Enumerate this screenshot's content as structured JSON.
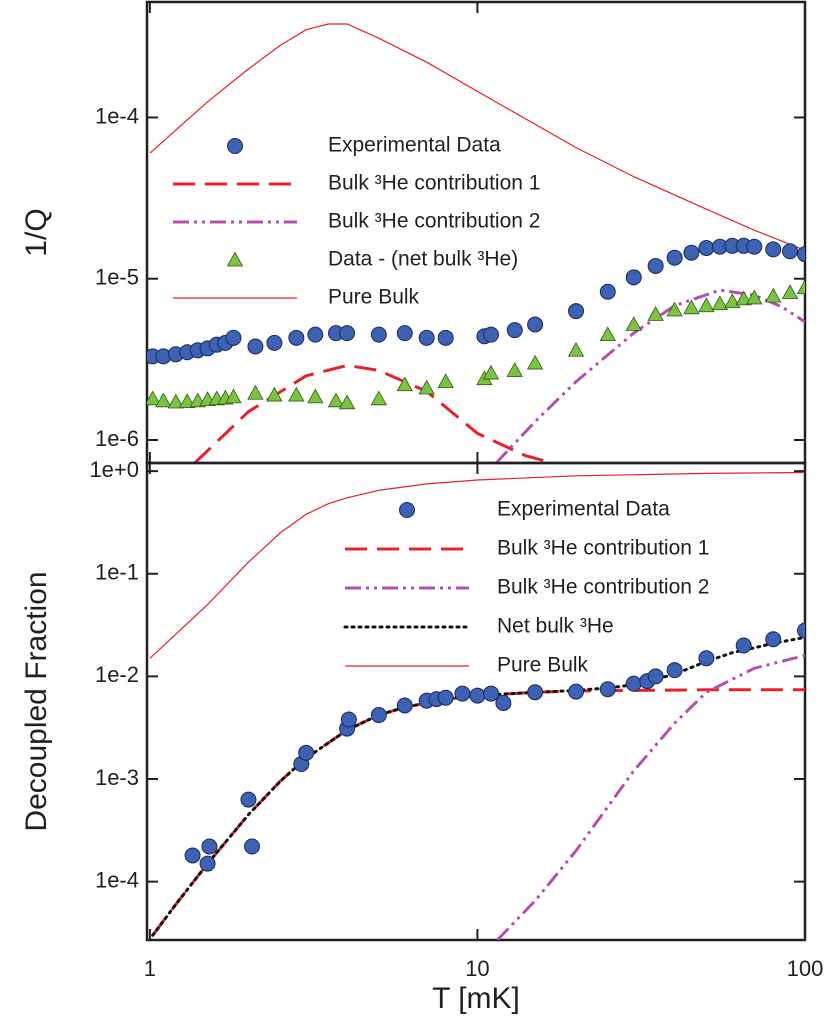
{
  "chart_data": [
    {
      "type": "line",
      "ylabel": "1/Q",
      "log_x": true,
      "log_y": true,
      "legend": true,
      "show_xtick_labels": false,
      "xlim": [
        0.98,
        100
      ],
      "xticks": [
        1,
        10,
        100
      ],
      "ylim": [
        7.2e-07,
        0.00052
      ],
      "yticks": [
        {
          "value": 1e-06,
          "label": "1e-6"
        },
        {
          "value": 1e-05,
          "label": "1e-5"
        },
        {
          "value": 0.0001,
          "label": "1e-4"
        }
      ],
      "series": [
        {
          "name": "Experimental Data",
          "style": "markers",
          "marker": "circle",
          "color": "#3d62b3",
          "x": [
            1.02,
            1.1,
            1.2,
            1.3,
            1.4,
            1.5,
            1.6,
            1.7,
            1.8,
            2.1,
            2.4,
            2.8,
            3.2,
            3.7,
            4.0,
            5,
            6,
            7,
            8,
            10.5,
            11,
            13,
            15,
            20,
            25,
            30,
            35,
            40,
            45,
            50,
            55,
            60,
            65,
            70,
            80,
            90,
            100
          ],
          "values": [
            3.3e-06,
            3.3e-06,
            3.4e-06,
            3.5e-06,
            3.6e-06,
            3.7e-06,
            3.9e-06,
            4e-06,
            4.3e-06,
            3.8e-06,
            4e-06,
            4.3e-06,
            4.5e-06,
            4.6e-06,
            4.6e-06,
            4.5e-06,
            4.6e-06,
            4.3e-06,
            4.3e-06,
            4.4e-06,
            4.5e-06,
            4.8e-06,
            5.2e-06,
            6.3e-06,
            8.3e-06,
            1.02e-05,
            1.2e-05,
            1.35e-05,
            1.45e-05,
            1.55e-05,
            1.58e-05,
            1.6e-05,
            1.6e-05,
            1.58e-05,
            1.52e-05,
            1.48e-05,
            1.42e-05
          ]
        },
        {
          "name": "Bulk ³He contribution 1",
          "style": "dashed",
          "color": "#e8202a",
          "x": [
            1.37,
            2,
            3,
            4,
            5,
            7,
            10,
            14,
            17
          ],
          "values": [
            7.2e-07,
            1.5e-06,
            2.5e-06,
            2.9e-06,
            2.7e-06,
            2e-06,
            1.1e-06,
            8e-07,
            7.2e-07
          ]
        },
        {
          "name": "Bulk ³He contribution 2",
          "style": "dashdotdot",
          "color": "#b54fae",
          "x": [
            11.4,
            15,
            20,
            30,
            40,
            55,
            70,
            85,
            100
          ],
          "values": [
            7.2e-07,
            1.3e-06,
            2.3e-06,
            4.6e-06,
            6.8e-06,
            8.5e-06,
            7.9e-06,
            6.7e-06,
            5.4e-06
          ]
        },
        {
          "name": "Data - (net bulk ³He)",
          "style": "markers",
          "marker": "triangle",
          "color": "#7dc242",
          "x": [
            1.02,
            1.1,
            1.2,
            1.3,
            1.4,
            1.5,
            1.6,
            1.7,
            1.8,
            2.1,
            2.4,
            2.8,
            3.2,
            3.7,
            4.0,
            5,
            6,
            7,
            8,
            10.5,
            11,
            13,
            15,
            20,
            25,
            30,
            35,
            40,
            45,
            50,
            55,
            60,
            65,
            70,
            80,
            90,
            100
          ],
          "values": [
            1.8e-06,
            1.75e-06,
            1.72e-06,
            1.73e-06,
            1.75e-06,
            1.78e-06,
            1.8e-06,
            1.82e-06,
            1.85e-06,
            1.95e-06,
            1.9e-06,
            1.9e-06,
            1.85e-06,
            1.75e-06,
            1.7e-06,
            1.8e-06,
            2.2e-06,
            2.1e-06,
            2.3e-06,
            2.4e-06,
            2.6e-06,
            2.7e-06,
            3e-06,
            3.6e-06,
            4.5e-06,
            5.2e-06,
            6e-06,
            6.4e-06,
            6.6e-06,
            6.8e-06,
            7e-06,
            7.2e-06,
            7.5e-06,
            7.6e-06,
            7.8e-06,
            8.2e-06,
            8.8e-06
          ]
        },
        {
          "name": "Pure Bulk",
          "style": "thin",
          "color": "#e8202a",
          "x": [
            1,
            1.5,
            2,
            2.5,
            3,
            3.5,
            4,
            5,
            7,
            10,
            20,
            30,
            50,
            70,
            100
          ],
          "values": [
            6e-05,
            0.000125,
            0.0002,
            0.00028,
            0.00035,
            0.00038,
            0.00038,
            0.00031,
            0.00022,
            0.000145,
            6.5e-05,
            4.3e-05,
            2.7e-05,
            2e-05,
            1.5e-05
          ]
        }
      ]
    },
    {
      "type": "line",
      "ylabel": "Decoupled Fraction",
      "xlabel": "T [mK]",
      "log_x": true,
      "log_y": true,
      "legend": true,
      "show_xtick_labels": true,
      "xlim": [
        0.98,
        100
      ],
      "xticks": [
        1,
        10,
        100
      ],
      "ylim": [
        2.7e-05,
        1.2
      ],
      "yticks": [
        {
          "value": 0.0001,
          "label": "1e-4"
        },
        {
          "value": 0.001,
          "label": "1e-3"
        },
        {
          "value": 0.01,
          "label": "1e-2"
        },
        {
          "value": 0.1,
          "label": "1e-1"
        },
        {
          "value": 1,
          "label": "1e+0"
        }
      ],
      "series": [
        {
          "name": "Experimental Data",
          "style": "markers",
          "marker": "circle",
          "color": "#3d62b3",
          "x": [
            1.35,
            1.5,
            1.52,
            2.0,
            2.05,
            2.9,
            3.0,
            4,
            4.05,
            5,
            6,
            7,
            7.5,
            8,
            9,
            10,
            11,
            12,
            15,
            20,
            25,
            30,
            33,
            35,
            40,
            50,
            65,
            80,
            100
          ],
          "values": [
            0.00018,
            0.00015,
            0.00022,
            0.00063,
            0.00022,
            0.0014,
            0.0018,
            0.0031,
            0.0038,
            0.0042,
            0.0052,
            0.0058,
            0.006,
            0.0062,
            0.0068,
            0.0065,
            0.0068,
            0.0055,
            0.007,
            0.0071,
            0.0075,
            0.0085,
            0.009,
            0.01,
            0.0115,
            0.015,
            0.02,
            0.023,
            0.028
          ]
        },
        {
          "name": "Bulk ³He contribution 1",
          "style": "dashed",
          "color": "#e8202a",
          "x": [
            1.02,
            1.2,
            1.5,
            2,
            2.5,
            3,
            4,
            5,
            6,
            8,
            10,
            15,
            20,
            30,
            50,
            100
          ],
          "values": [
            3e-05,
            6e-05,
            0.00015,
            0.00045,
            0.00095,
            0.0016,
            0.003,
            0.0042,
            0.005,
            0.006,
            0.0065,
            0.007,
            0.0072,
            0.0073,
            0.0074,
            0.0074
          ]
        },
        {
          "name": "Bulk ³He contribution 2",
          "style": "dashdotdot",
          "color": "#b54fae",
          "x": [
            11.5,
            15,
            20,
            30,
            40,
            50,
            70,
            100
          ],
          "values": [
            2.7e-05,
            6.5e-05,
            0.0002,
            0.0012,
            0.0035,
            0.007,
            0.012,
            0.016
          ]
        },
        {
          "name": "Net bulk ³He",
          "style": "dotted",
          "color": "#111111",
          "x": [
            1.02,
            1.2,
            1.5,
            2,
            2.5,
            3,
            4,
            5,
            6,
            8,
            10,
            15,
            20,
            25,
            30,
            40,
            50,
            60,
            70,
            80,
            100
          ],
          "values": [
            3e-05,
            6e-05,
            0.00015,
            0.00045,
            0.00095,
            0.0016,
            0.003,
            0.0042,
            0.005,
            0.006,
            0.0065,
            0.007,
            0.0073,
            0.0077,
            0.0083,
            0.0105,
            0.014,
            0.017,
            0.019,
            0.021,
            0.024
          ]
        },
        {
          "name": "Pure Bulk",
          "style": "thin",
          "color": "#e8202a",
          "x": [
            1,
            1.5,
            2,
            2.5,
            3,
            3.5,
            4,
            5,
            7,
            10,
            20,
            50,
            100
          ],
          "values": [
            0.015,
            0.05,
            0.13,
            0.25,
            0.38,
            0.48,
            0.55,
            0.65,
            0.75,
            0.82,
            0.9,
            0.95,
            0.97
          ]
        }
      ]
    }
  ]
}
